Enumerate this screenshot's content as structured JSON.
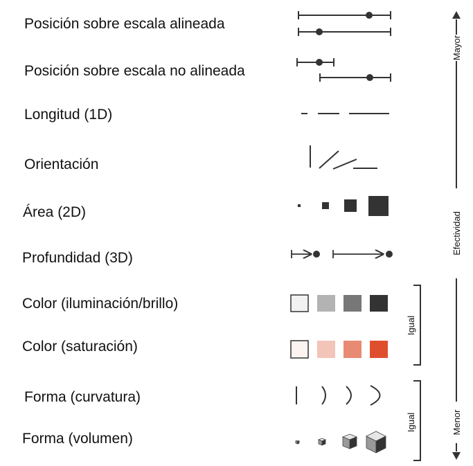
{
  "channels": [
    {
      "label": "Posición sobre escala alineada",
      "icon": "aligned-scale-dot-icon"
    },
    {
      "label": "Posición sobre escala no alineada",
      "icon": "unaligned-scale-dot-icon"
    },
    {
      "label": "Longitud (1D)",
      "icon": "length-lines-icon"
    },
    {
      "label": "Orientación",
      "icon": "orientation-lines-icon"
    },
    {
      "label": "Área (2D)",
      "icon": "area-squares-icon"
    },
    {
      "label": "Profundidad (3D)",
      "icon": "depth-arrows-icon"
    },
    {
      "label": "Color (iluminación/brillo)",
      "icon": "luminance-swatches-icon"
    },
    {
      "label": "Color (saturación)",
      "icon": "saturation-swatches-icon"
    },
    {
      "label": "Forma (curvatura)",
      "icon": "curvature-arcs-icon"
    },
    {
      "label": "Forma (volumen)",
      "icon": "volume-cubes-icon"
    }
  ],
  "axis": {
    "top": "Mayor",
    "middle": "Efectividad",
    "bottom": "Menor"
  },
  "brackets": [
    "Igual",
    "Igual"
  ],
  "colors": {
    "luminance": [
      "#f2f2f2",
      "#b3b3b3",
      "#777777",
      "#333333"
    ],
    "saturation": [
      "#fdf3f1",
      "#f3c4b8",
      "#e98a73",
      "#e04f2d"
    ],
    "ink": "#333333"
  }
}
